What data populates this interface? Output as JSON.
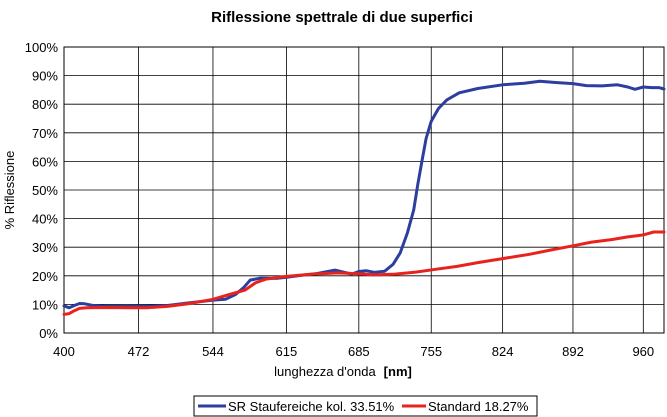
{
  "chart_data": {
    "type": "line",
    "title": "Riflessione spettrale di due superfici",
    "xlabel": "lunghezza d'onda",
    "xlabel_unit": "[nm]",
    "ylabel": "% Riflessione",
    "xlim": [
      400,
      980
    ],
    "ylim": [
      0,
      100
    ],
    "x_ticks": [
      400,
      472,
      544,
      615,
      685,
      755,
      824,
      892,
      960
    ],
    "y_ticks": [
      "0%",
      "10%",
      "20%",
      "30%",
      "40%",
      "50%",
      "60%",
      "70%",
      "80%",
      "90%",
      "100%"
    ],
    "grid": true,
    "legend_position": "bottom",
    "series": [
      {
        "name": "SR Staufereiche kol. 33.51%",
        "color": "#2c3e9e",
        "points": [
          [
            400,
            9.5
          ],
          [
            405,
            8.8
          ],
          [
            410,
            9.6
          ],
          [
            415,
            10.3
          ],
          [
            420,
            10.2
          ],
          [
            428,
            9.6
          ],
          [
            440,
            9.4
          ],
          [
            460,
            9.3
          ],
          [
            480,
            9.4
          ],
          [
            500,
            9.6
          ],
          [
            520,
            10.5
          ],
          [
            544,
            11.5
          ],
          [
            556,
            11.8
          ],
          [
            566,
            13.5
          ],
          [
            574,
            16
          ],
          [
            580,
            18.5
          ],
          [
            590,
            19.2
          ],
          [
            605,
            19.1
          ],
          [
            615,
            19.5
          ],
          [
            630,
            20.2
          ],
          [
            645,
            20.8
          ],
          [
            655,
            21.5
          ],
          [
            662,
            22
          ],
          [
            670,
            21.3
          ],
          [
            678,
            20.6
          ],
          [
            685,
            21.5
          ],
          [
            692,
            21.8
          ],
          [
            700,
            21.2
          ],
          [
            710,
            21.6
          ],
          [
            718,
            24
          ],
          [
            725,
            28
          ],
          [
            732,
            35
          ],
          [
            738,
            43
          ],
          [
            742,
            52
          ],
          [
            746,
            60
          ],
          [
            750,
            68
          ],
          [
            755,
            74
          ],
          [
            762,
            78.5
          ],
          [
            770,
            81.5
          ],
          [
            782,
            84
          ],
          [
            800,
            85.5
          ],
          [
            824,
            86.8
          ],
          [
            845,
            87.3
          ],
          [
            860,
            88
          ],
          [
            875,
            87.6
          ],
          [
            892,
            87.2
          ],
          [
            905,
            86.5
          ],
          [
            920,
            86.4
          ],
          [
            935,
            86.8
          ],
          [
            945,
            86
          ],
          [
            952,
            85.2
          ],
          [
            960,
            86
          ],
          [
            968,
            85.8
          ],
          [
            975,
            85.8
          ],
          [
            980,
            85.3
          ]
        ]
      },
      {
        "name": "Standard 18.27%",
        "color": "#e8231e",
        "points": [
          [
            400,
            6.5
          ],
          [
            405,
            6.8
          ],
          [
            410,
            7.8
          ],
          [
            415,
            8.6
          ],
          [
            422,
            8.8
          ],
          [
            440,
            8.9
          ],
          [
            460,
            8.8
          ],
          [
            480,
            8.8
          ],
          [
            500,
            9.3
          ],
          [
            520,
            10.2
          ],
          [
            544,
            11.8
          ],
          [
            560,
            13.5
          ],
          [
            575,
            15
          ],
          [
            585,
            17.5
          ],
          [
            595,
            18.8
          ],
          [
            615,
            19.8
          ],
          [
            640,
            20.6
          ],
          [
            665,
            21
          ],
          [
            685,
            20.7
          ],
          [
            700,
            20.3
          ],
          [
            720,
            20.6
          ],
          [
            740,
            21.3
          ],
          [
            760,
            22.3
          ],
          [
            780,
            23.3
          ],
          [
            800,
            24.6
          ],
          [
            824,
            26
          ],
          [
            850,
            27.5
          ],
          [
            870,
            29
          ],
          [
            892,
            30.5
          ],
          [
            910,
            31.8
          ],
          [
            930,
            32.7
          ],
          [
            945,
            33.6
          ],
          [
            960,
            34.3
          ],
          [
            970,
            35.3
          ],
          [
            980,
            35.3
          ]
        ]
      }
    ]
  }
}
